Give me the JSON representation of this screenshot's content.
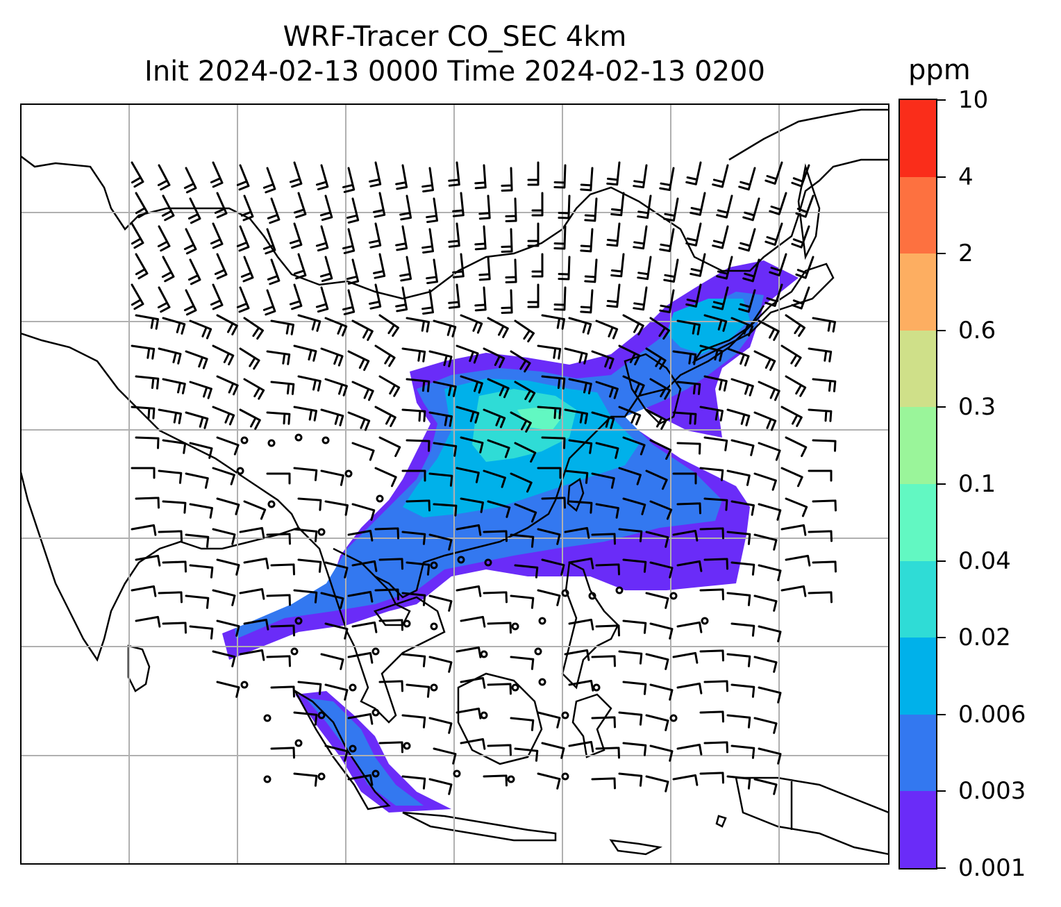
{
  "title": {
    "line1": "WRF-Tracer CO_SEC 4km",
    "line2": "Init 2024-02-13 0000 Time 2024-02-13 0200"
  },
  "colorbar": {
    "unit_label": "ppm",
    "ticks": [
      "0.001",
      "0.003",
      "0.006",
      "0.02",
      "0.04",
      "0.1",
      "0.3",
      "0.6",
      "2",
      "4",
      "10"
    ],
    "colors": [
      "#6a2cf8",
      "#3378f0",
      "#00b1ea",
      "#2fdcd6",
      "#62f8c2",
      "#9af59a",
      "#cfe089",
      "#fdae61",
      "#fd7140",
      "#fa2d1a"
    ]
  },
  "map": {
    "projection": "lat-lon",
    "gridlines": true,
    "overlay": "wind barbs",
    "field": "CO_SEC tracer concentration"
  }
}
